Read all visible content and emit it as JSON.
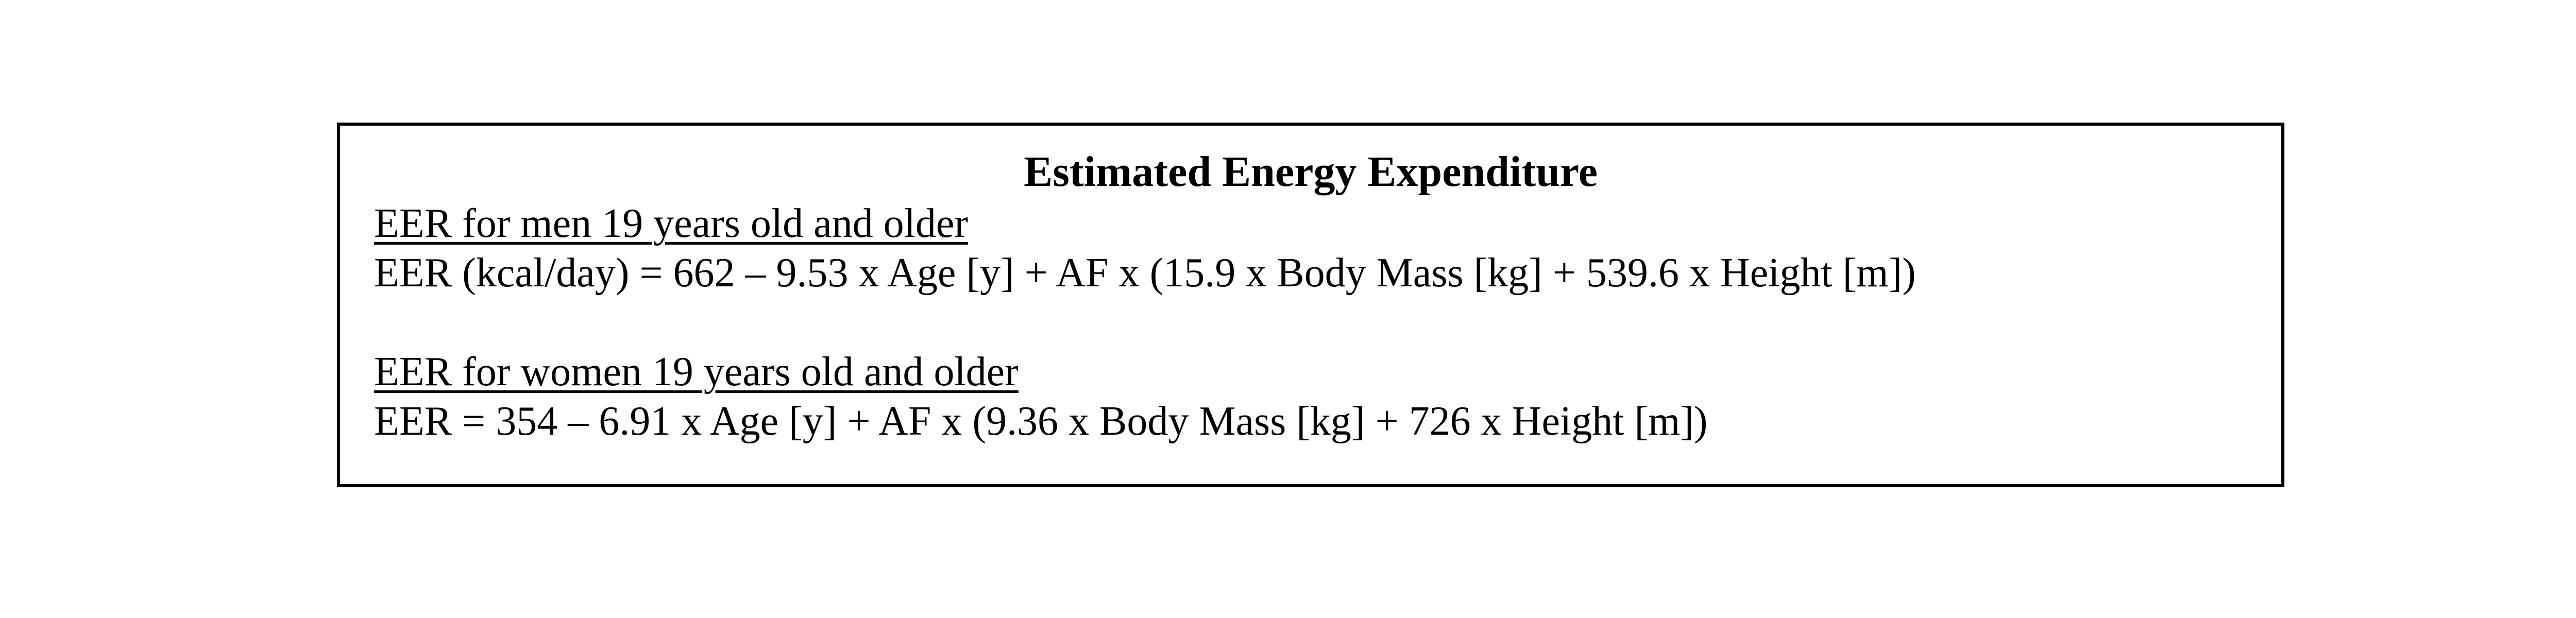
{
  "title": "Estimated Energy Expenditure",
  "sections": [
    {
      "heading": "EER for men 19 years old and older",
      "formula": "EER (kcal/day) = 662 – 9.53 x Age [y] + AF x (15.9 x Body Mass [kg] + 539.6 x Height [m])"
    },
    {
      "heading": "EER for women 19 years old and older",
      "formula": "EER = 354 – 6.91 x Age [y] + AF x (9.36 x Body Mass [kg] + 726 x Height [m])"
    }
  ]
}
